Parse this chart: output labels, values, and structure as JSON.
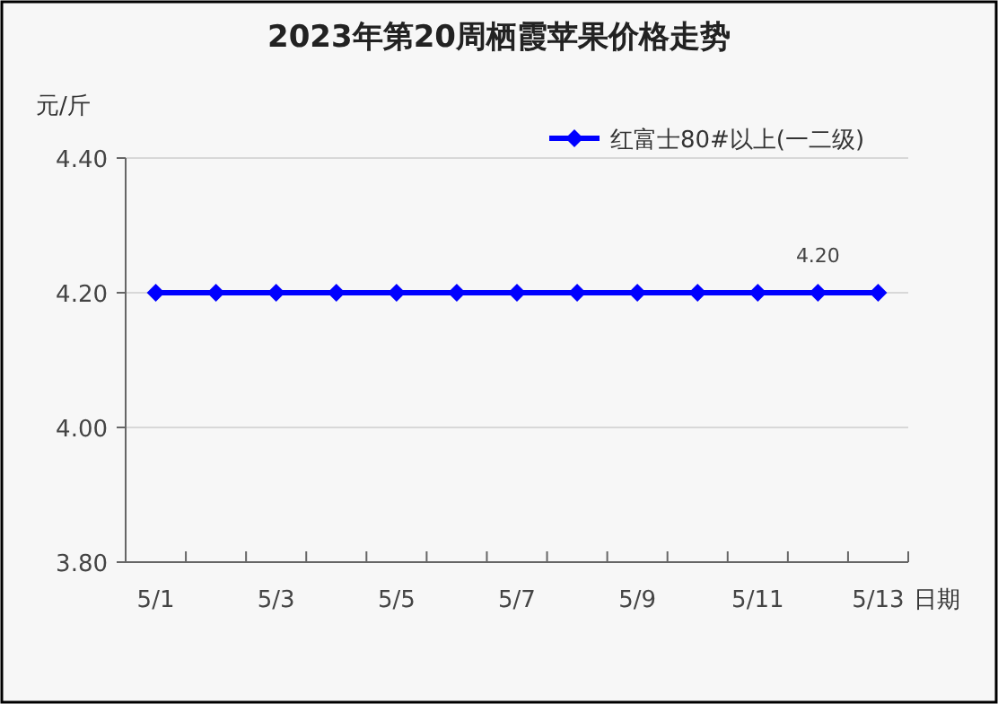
{
  "chart_data": {
    "type": "line",
    "title": "2023年第20周栖霞苹果价格走势",
    "ylabel": "元/斤",
    "xlabel": "日期",
    "categories": [
      "5/1",
      null,
      "5/3",
      null,
      "5/5",
      null,
      "5/7",
      null,
      "5/9",
      null,
      "5/11",
      null,
      "5/13"
    ],
    "series": [
      {
        "name": "红富士80#以上(一二级)",
        "color": "#0000ff",
        "values": [
          4.2,
          4.2,
          4.2,
          4.2,
          4.2,
          4.2,
          4.2,
          4.2,
          4.2,
          4.2,
          4.2,
          4.2,
          4.2
        ],
        "value_labels": [
          null,
          null,
          null,
          null,
          null,
          null,
          null,
          null,
          null,
          null,
          null,
          "4.20",
          null
        ]
      }
    ],
    "ylim": [
      3.8,
      4.4
    ],
    "yticks": [
      {
        "value": 3.8,
        "label": "3.80"
      },
      {
        "value": 4.0,
        "label": "4.00"
      },
      {
        "value": 4.2,
        "label": "4.20"
      },
      {
        "value": 4.4,
        "label": "4.40"
      }
    ],
    "grid": "y",
    "legend": "top right",
    "marker": "diamond",
    "line_style": "solid"
  }
}
